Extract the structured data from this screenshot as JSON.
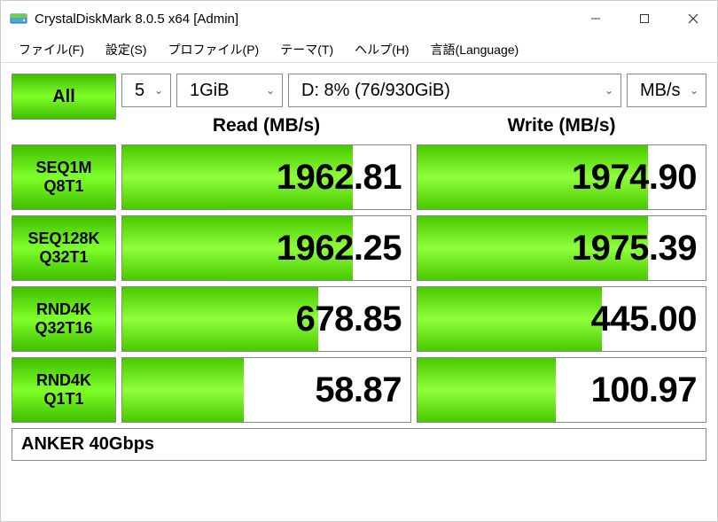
{
  "window": {
    "title": "CrystalDiskMark 8.0.5 x64 [Admin]"
  },
  "menu": {
    "file": "ファイル(F)",
    "settings": "設定(S)",
    "profile": "プロファイル(P)",
    "theme": "テーマ(T)",
    "help": "ヘルプ(H)",
    "language": "言語(Language)"
  },
  "controls": {
    "all_label": "All",
    "runs": "5",
    "size": "1GiB",
    "drive": "D: 8% (76/930GiB)",
    "unit": "MB/s"
  },
  "headers": {
    "read": "Read (MB/s)",
    "write": "Write (MB/s)"
  },
  "rows": [
    {
      "l1": "SEQ1M",
      "l2": "Q8T1",
      "read": "1962.81",
      "read_bar_pct": 80,
      "write": "1974.90",
      "write_bar_pct": 80
    },
    {
      "l1": "SEQ128K",
      "l2": "Q32T1",
      "read": "1962.25",
      "read_bar_pct": 80,
      "write": "1975.39",
      "write_bar_pct": 80
    },
    {
      "l1": "RND4K",
      "l2": "Q32T16",
      "read": "678.85",
      "read_bar_pct": 68,
      "write": "445.00",
      "write_bar_pct": 64
    },
    {
      "l1": "RND4K",
      "l2": "Q1T1",
      "read": "58.87",
      "read_bar_pct": 42,
      "write": "100.97",
      "write_bar_pct": 48
    }
  ],
  "footer": "ANKER 40Gbps",
  "style": {
    "green_gradient": [
      "#3fbf00",
      "#7fff2a",
      "#3fbf00"
    ],
    "bar_gradient": [
      "#48c800",
      "#8fff3a",
      "#48c800"
    ],
    "border_color": "#888888",
    "background": "#ffffff",
    "value_fontsize_pt": 30,
    "label_fontsize_pt": 14,
    "header_fontsize_pt": 16
  }
}
